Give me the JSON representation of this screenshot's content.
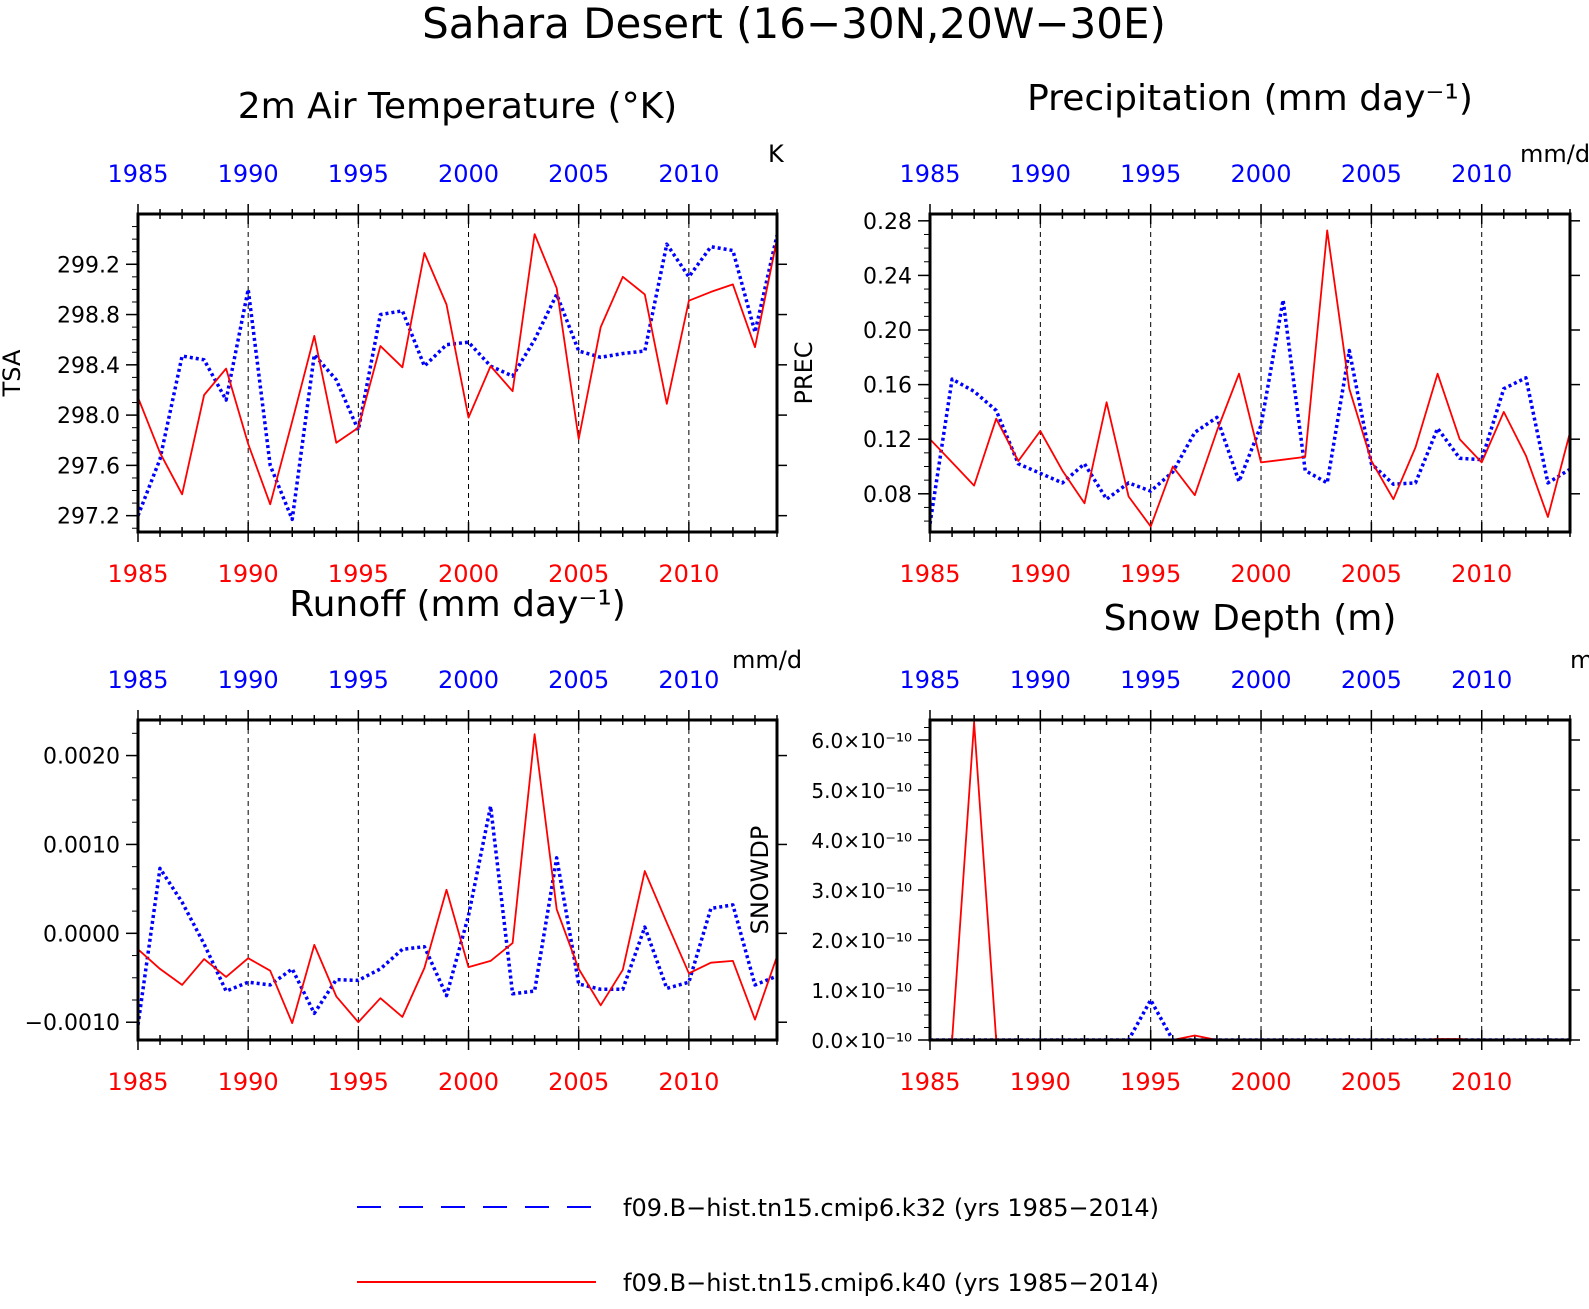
{
  "figure": {
    "title": "Sahara Desert (16−30N,20W−30E)"
  },
  "colors": {
    "k32": "#0000ff",
    "k40": "#ff0000",
    "axis": "#000000",
    "grid": "#000000"
  },
  "legend": {
    "placement": "bottom-center",
    "items": [
      {
        "label": "f09.B−hist.tn15.cmip6.k32 (yrs 1985−2014)",
        "color": "#0000ff",
        "style": "dashed"
      },
      {
        "label": "f09.B−hist.tn15.cmip6.k40 (yrs 1985−2014)",
        "color": "#ff0000",
        "style": "solid"
      }
    ]
  },
  "chart_data": [
    {
      "id": "tsa",
      "type": "line",
      "title": "2m Air Temperature (°K)",
      "ylabel": "TSA",
      "units": "K",
      "x": [
        1985,
        1986,
        1987,
        1988,
        1989,
        1990,
        1991,
        1992,
        1993,
        1994,
        1995,
        1996,
        1997,
        1998,
        1999,
        2000,
        2001,
        2002,
        2003,
        2004,
        2005,
        2006,
        2007,
        2008,
        2009,
        2010,
        2011,
        2012,
        2013,
        2014
      ],
      "xlim": [
        1985,
        2014
      ],
      "xticks": [
        "1985",
        "1990",
        "1995",
        "2000",
        "2005",
        "2010"
      ],
      "ylim": [
        297.07,
        299.6
      ],
      "yticks": [
        "297.2",
        "297.6",
        "298.0",
        "298.4",
        "298.8",
        "299.2"
      ],
      "series": [
        {
          "key": "k32",
          "style": "dashed",
          "values": [
            297.2,
            297.65,
            298.47,
            298.44,
            298.12,
            299.0,
            297.6,
            297.17,
            298.48,
            298.28,
            297.88,
            298.8,
            298.83,
            298.39,
            298.56,
            298.58,
            298.39,
            298.31,
            298.6,
            298.96,
            298.51,
            298.46,
            298.49,
            298.51,
            299.36,
            299.1,
            299.34,
            299.31,
            298.66,
            299.43
          ]
        },
        {
          "key": "k40",
          "style": "solid",
          "values": [
            298.14,
            297.7,
            297.37,
            298.16,
            298.37,
            297.77,
            297.29,
            297.95,
            298.63,
            297.78,
            297.9,
            298.55,
            298.38,
            299.29,
            298.88,
            297.98,
            298.39,
            298.19,
            299.44,
            299.01,
            297.81,
            298.7,
            299.1,
            298.96,
            298.09,
            298.91,
            298.98,
            299.04,
            298.54,
            299.4
          ]
        }
      ]
    },
    {
      "id": "prec",
      "type": "line",
      "title": "Precipitation (mm day⁻¹)",
      "ylabel": "PREC",
      "units": "mm/d",
      "x": [
        1985,
        1986,
        1987,
        1988,
        1989,
        1990,
        1991,
        1992,
        1993,
        1994,
        1995,
        1996,
        1997,
        1998,
        1999,
        2000,
        2001,
        2002,
        2003,
        2004,
        2005,
        2006,
        2007,
        2008,
        2009,
        2010,
        2011,
        2012,
        2013,
        2014
      ],
      "xlim": [
        1985,
        2014
      ],
      "xticks": [
        "1985",
        "1990",
        "1995",
        "2000",
        "2005",
        "2010"
      ],
      "ylim": [
        0.052,
        0.285
      ],
      "yticks": [
        "0.08",
        "0.12",
        "0.16",
        "0.20",
        "0.24",
        "0.28"
      ],
      "series": [
        {
          "key": "k32",
          "style": "dashed",
          "values": [
            0.058,
            0.164,
            0.155,
            0.141,
            0.102,
            0.095,
            0.088,
            0.102,
            0.076,
            0.088,
            0.082,
            0.096,
            0.125,
            0.136,
            0.089,
            0.13,
            0.222,
            0.097,
            0.088,
            0.185,
            0.102,
            0.087,
            0.088,
            0.128,
            0.106,
            0.105,
            0.157,
            0.165,
            0.088,
            0.098
          ]
        },
        {
          "key": "k40",
          "style": "solid",
          "values": [
            0.12,
            0.103,
            0.086,
            0.135,
            0.104,
            0.126,
            0.097,
            0.073,
            0.147,
            0.078,
            0.056,
            0.1,
            0.079,
            0.126,
            0.168,
            0.103,
            0.105,
            0.107,
            0.273,
            0.157,
            0.104,
            0.076,
            0.114,
            0.168,
            0.12,
            0.103,
            0.14,
            0.108,
            0.063,
            0.125
          ]
        }
      ]
    },
    {
      "id": "runoff",
      "type": "line",
      "title": "Runoff (mm day⁻¹)",
      "ylabel": "",
      "units": "mm/d",
      "x": [
        1985,
        1986,
        1987,
        1988,
        1989,
        1990,
        1991,
        1992,
        1993,
        1994,
        1995,
        1996,
        1997,
        1998,
        1999,
        2000,
        2001,
        2002,
        2003,
        2004,
        2005,
        2006,
        2007,
        2008,
        2009,
        2010,
        2011,
        2012,
        2013,
        2014
      ],
      "xlim": [
        1985,
        2014
      ],
      "xticks": [
        "1985",
        "1990",
        "1995",
        "2000",
        "2005",
        "2010"
      ],
      "ylim": [
        -0.0012,
        0.0024
      ],
      "yticks": [
        "−0.0010",
        "0.0000",
        "0.0010",
        "0.0020"
      ],
      "series": [
        {
          "key": "k32",
          "style": "dashed",
          "values": [
            -0.00103,
            0.00073,
            0.00035,
            -0.00012,
            -0.00065,
            -0.00055,
            -0.00058,
            -0.0004,
            -0.0009,
            -0.00052,
            -0.00053,
            -0.0004,
            -0.00018,
            -0.00015,
            -0.0007,
            0.0002,
            0.00143,
            -0.00068,
            -0.00065,
            0.00085,
            -0.00057,
            -0.00063,
            -0.00063,
            7e-05,
            -0.00062,
            -0.00055,
            0.00028,
            0.00032,
            -0.00058,
            -0.00048
          ]
        },
        {
          "key": "k40",
          "style": "solid",
          "values": [
            -0.00018,
            -0.0004,
            -0.00058,
            -0.00029,
            -0.00049,
            -0.00028,
            -0.00042,
            -0.00101,
            -0.00013,
            -0.00071,
            -0.001,
            -0.00073,
            -0.00094,
            -0.00039,
            0.00049,
            -0.00038,
            -0.00031,
            -0.00011,
            0.00224,
            0.00027,
            -0.0004,
            -0.00081,
            -0.00041,
            0.0007,
            0.00012,
            -0.00045,
            -0.00033,
            -0.00031,
            -0.00097,
            -0.00026
          ]
        }
      ]
    },
    {
      "id": "snowdp",
      "type": "line",
      "title": "Snow Depth (m)",
      "ylabel": "SNOWDP",
      "units": "m",
      "x": [
        1985,
        1986,
        1987,
        1988,
        1989,
        1990,
        1991,
        1992,
        1993,
        1994,
        1995,
        1996,
        1997,
        1998,
        1999,
        2000,
        2001,
        2002,
        2003,
        2004,
        2005,
        2006,
        2007,
        2008,
        2009,
        2010,
        2011,
        2012,
        2013,
        2014
      ],
      "xlim": [
        1985,
        2014
      ],
      "xticks": [
        "1985",
        "1990",
        "1995",
        "2000",
        "2005",
        "2010"
      ],
      "ylim": [
        0,
        6.4e-10
      ],
      "yticks": [
        "0.0×10⁻¹⁰",
        "1.0×10⁻¹⁰",
        "2.0×10⁻¹⁰",
        "3.0×10⁻¹⁰",
        "4.0×10⁻¹⁰",
        "5.0×10⁻¹⁰",
        "6.0×10⁻¹⁰"
      ],
      "series": [
        {
          "key": "k32",
          "style": "dashed",
          "values": [
            0,
            0,
            0,
            0,
            0,
            0,
            0,
            0,
            0,
            0,
            8e-11,
            0,
            0,
            0,
            0,
            0,
            0,
            0,
            0,
            0,
            0,
            0,
            0,
            0,
            0,
            0,
            0,
            0,
            0,
            0
          ]
        },
        {
          "key": "k40",
          "style": "solid",
          "values": [
            0,
            0,
            6.35e-10,
            0,
            0,
            0,
            0,
            0,
            0,
            0,
            0,
            0,
            9e-12,
            0,
            0,
            0,
            0,
            0,
            0,
            0,
            0,
            0,
            0,
            2e-12,
            2e-12,
            0,
            0,
            0,
            0,
            0
          ]
        }
      ]
    }
  ]
}
